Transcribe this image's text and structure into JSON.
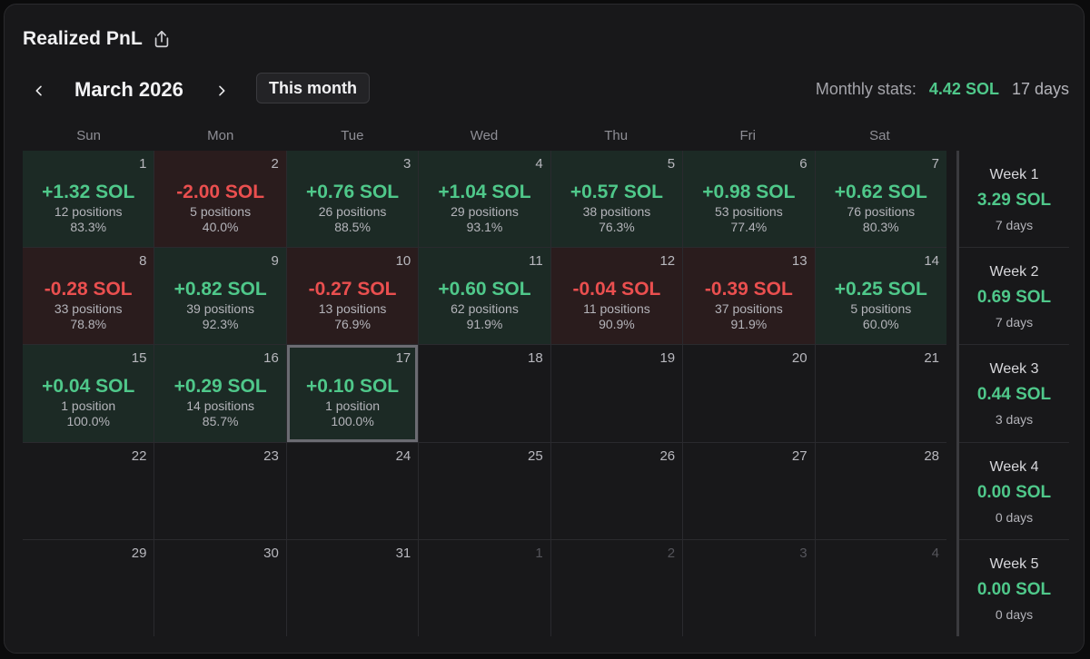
{
  "header": {
    "title": "Realized PnL",
    "share_icon": "share-icon"
  },
  "nav": {
    "prev_icon": "chevron-left-icon",
    "next_icon": "chevron-right-icon",
    "month_label": "March 2026",
    "this_month_label": "This month"
  },
  "stats": {
    "label": "Monthly stats:",
    "value": "4.42 SOL",
    "days": "17 days"
  },
  "colors": {
    "positive": "#4fc88a",
    "negative": "#ea4f4f",
    "background": "#18181a"
  },
  "weekdays": [
    "Sun",
    "Mon",
    "Tue",
    "Wed",
    "Thu",
    "Fri",
    "Sat"
  ],
  "days": [
    {
      "day": "1",
      "pnl": "+1.32 SOL",
      "positions": "12 positions",
      "rate": "83.3%",
      "tone": "pos"
    },
    {
      "day": "2",
      "pnl": "-2.00 SOL",
      "positions": "5 positions",
      "rate": "40.0%",
      "tone": "neg"
    },
    {
      "day": "3",
      "pnl": "+0.76 SOL",
      "positions": "26 positions",
      "rate": "88.5%",
      "tone": "pos"
    },
    {
      "day": "4",
      "pnl": "+1.04 SOL",
      "positions": "29 positions",
      "rate": "93.1%",
      "tone": "pos"
    },
    {
      "day": "5",
      "pnl": "+0.57 SOL",
      "positions": "38 positions",
      "rate": "76.3%",
      "tone": "pos"
    },
    {
      "day": "6",
      "pnl": "+0.98 SOL",
      "positions": "53 positions",
      "rate": "77.4%",
      "tone": "pos"
    },
    {
      "day": "7",
      "pnl": "+0.62 SOL",
      "positions": "76 positions",
      "rate": "80.3%",
      "tone": "pos"
    },
    {
      "day": "8",
      "pnl": "-0.28 SOL",
      "positions": "33 positions",
      "rate": "78.8%",
      "tone": "neg"
    },
    {
      "day": "9",
      "pnl": "+0.82 SOL",
      "positions": "39 positions",
      "rate": "92.3%",
      "tone": "pos"
    },
    {
      "day": "10",
      "pnl": "-0.27 SOL",
      "positions": "13 positions",
      "rate": "76.9%",
      "tone": "neg"
    },
    {
      "day": "11",
      "pnl": "+0.60 SOL",
      "positions": "62 positions",
      "rate": "91.9%",
      "tone": "pos"
    },
    {
      "day": "12",
      "pnl": "-0.04 SOL",
      "positions": "11 positions",
      "rate": "90.9%",
      "tone": "neg"
    },
    {
      "day": "13",
      "pnl": "-0.39 SOL",
      "positions": "37 positions",
      "rate": "91.9%",
      "tone": "neg"
    },
    {
      "day": "14",
      "pnl": "+0.25 SOL",
      "positions": "5 positions",
      "rate": "60.0%",
      "tone": "pos"
    },
    {
      "day": "15",
      "pnl": "+0.04 SOL",
      "positions": "1 position",
      "rate": "100.0%",
      "tone": "pos"
    },
    {
      "day": "16",
      "pnl": "+0.29 SOL",
      "positions": "14 positions",
      "rate": "85.7%",
      "tone": "pos"
    },
    {
      "day": "17",
      "pnl": "+0.10 SOL",
      "positions": "1 position",
      "rate": "100.0%",
      "tone": "pos",
      "today": true
    },
    {
      "day": "18",
      "tone": "empty"
    },
    {
      "day": "19",
      "tone": "empty"
    },
    {
      "day": "20",
      "tone": "empty"
    },
    {
      "day": "21",
      "tone": "empty"
    },
    {
      "day": "22",
      "tone": "empty"
    },
    {
      "day": "23",
      "tone": "empty"
    },
    {
      "day": "24",
      "tone": "empty"
    },
    {
      "day": "25",
      "tone": "empty"
    },
    {
      "day": "26",
      "tone": "empty"
    },
    {
      "day": "27",
      "tone": "empty"
    },
    {
      "day": "28",
      "tone": "empty"
    },
    {
      "day": "29",
      "tone": "empty"
    },
    {
      "day": "30",
      "tone": "empty"
    },
    {
      "day": "31",
      "tone": "empty"
    },
    {
      "day": "1",
      "tone": "empty",
      "muted": true
    },
    {
      "day": "2",
      "tone": "empty",
      "muted": true
    },
    {
      "day": "3",
      "tone": "empty",
      "muted": true
    },
    {
      "day": "4",
      "tone": "empty",
      "muted": true
    }
  ],
  "weeks": [
    {
      "label": "Week 1",
      "pnl": "3.29 SOL",
      "days": "7 days"
    },
    {
      "label": "Week 2",
      "pnl": "0.69 SOL",
      "days": "7 days"
    },
    {
      "label": "Week 3",
      "pnl": "0.44 SOL",
      "days": "3 days"
    },
    {
      "label": "Week 4",
      "pnl": "0.00 SOL",
      "days": "0 days"
    },
    {
      "label": "Week 5",
      "pnl": "0.00 SOL",
      "days": "0 days"
    }
  ]
}
